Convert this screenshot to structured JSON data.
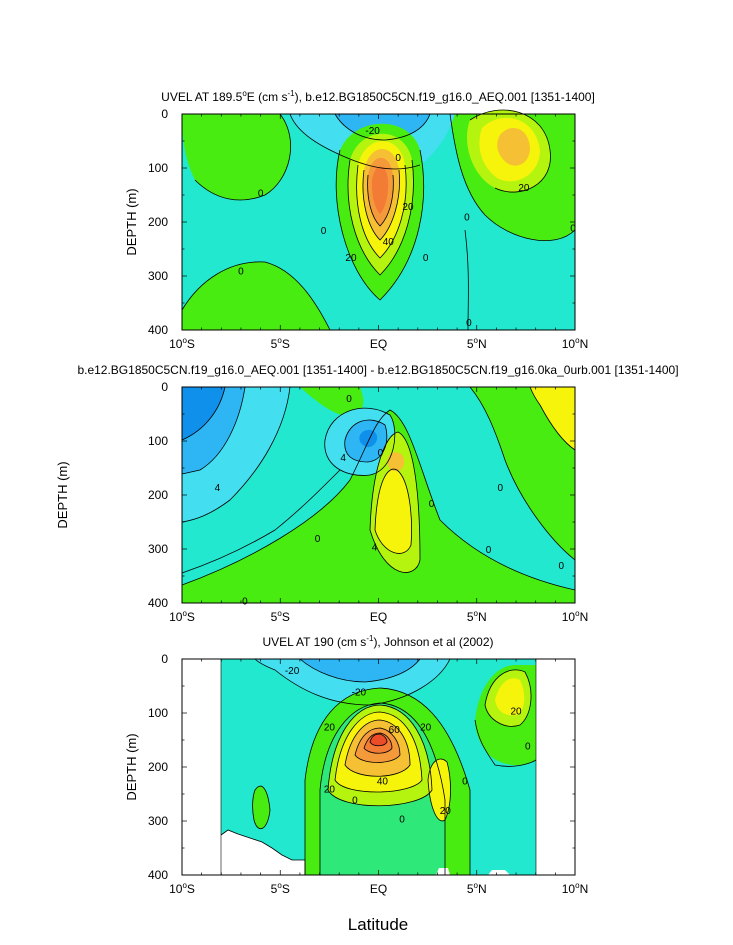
{
  "chart_data": [
    {
      "type": "contour",
      "title_prefix": "UVEL AT 189.5",
      "title_sup": "o",
      "title_mid": "E (cm s",
      "title_sup2": "-1",
      "title_suffix": "), b.e12.BG1850C5CN.f19_g16.0_AEQ.001 [1351-1400]",
      "xlabel": "",
      "ylabel": "DEPTH (m)",
      "xlim": [
        -10,
        10
      ],
      "ylim": [
        400,
        0
      ],
      "x_tick_values": [
        -10,
        -5,
        0,
        5,
        10
      ],
      "y_ticks": [
        "0",
        "100",
        "200",
        "300",
        "400"
      ],
      "contour_interval": 5,
      "contour_labels": [
        {
          "text": "-20",
          "x": -0.3,
          "y": 30
        },
        {
          "text": "0",
          "x": 1.0,
          "y": 80
        },
        {
          "text": "0",
          "x": -6.0,
          "y": 145
        },
        {
          "text": "20",
          "x": 1.5,
          "y": 170
        },
        {
          "text": "40",
          "x": 0.5,
          "y": 235
        },
        {
          "text": "0",
          "x": -2.8,
          "y": 215
        },
        {
          "text": "20",
          "x": -1.4,
          "y": 265
        },
        {
          "text": "0",
          "x": 2.4,
          "y": 265
        },
        {
          "text": "0",
          "x": -7.0,
          "y": 290
        },
        {
          "text": "0",
          "x": 4.5,
          "y": 190
        },
        {
          "text": "20",
          "x": 7.4,
          "y": 135
        },
        {
          "text": "0",
          "x": 9.9,
          "y": 210
        },
        {
          "text": "0",
          "x": 4.6,
          "y": 385
        }
      ]
    },
    {
      "type": "contour",
      "title": "b.e12.BG1850C5CN.f19_g16.0_AEQ.001 [1351-1400] - b.e12.BG1850C5CN.f19_g16.0ka_0urb.001 [1351-1400]",
      "xlabel": "",
      "ylabel": "DEPTH (m)",
      "xlim": [
        -10,
        10
      ],
      "ylim": [
        400,
        0
      ],
      "x_tick_values": [
        -10,
        -5,
        0,
        5,
        10
      ],
      "y_ticks": [
        "0",
        "100",
        "200",
        "300",
        "400"
      ],
      "contour_interval": 2,
      "contour_labels": [
        {
          "text": "0",
          "x": -1.5,
          "y": 20
        },
        {
          "text": "4",
          "x": -1.8,
          "y": 130
        },
        {
          "text": "0",
          "x": 0.1,
          "y": 120
        },
        {
          "text": "4",
          "x": -8.2,
          "y": 185
        },
        {
          "text": "0",
          "x": -3.1,
          "y": 280
        },
        {
          "text": "4",
          "x": -0.2,
          "y": 295
        },
        {
          "text": "0",
          "x": 2.7,
          "y": 215
        },
        {
          "text": "0",
          "x": 6.2,
          "y": 185
        },
        {
          "text": "0",
          "x": 5.6,
          "y": 300
        },
        {
          "text": "0",
          "x": 9.3,
          "y": 330
        },
        {
          "text": "0",
          "x": -6.8,
          "y": 395
        }
      ]
    },
    {
      "type": "contour",
      "title_prefix": "UVEL AT 190 (cm s",
      "title_sup": "-1",
      "title_suffix": "), Johnson et al (2002)",
      "xlabel": "Latitude",
      "ylabel": "DEPTH (m)",
      "xlim": [
        -10,
        10
      ],
      "ylim": [
        400,
        0
      ],
      "data_extent_lat": [
        -8,
        8
      ],
      "x_tick_values": [
        -10,
        -5,
        0,
        5,
        10
      ],
      "y_ticks": [
        "0",
        "100",
        "200",
        "300",
        "400"
      ],
      "contour_interval": 5,
      "contour_labels": [
        {
          "text": "-20",
          "x": -4.4,
          "y": 20
        },
        {
          "text": "-20",
          "x": -1.0,
          "y": 60
        },
        {
          "text": "20",
          "x": -2.5,
          "y": 125
        },
        {
          "text": "60",
          "x": 0.8,
          "y": 130
        },
        {
          "text": "20",
          "x": 2.4,
          "y": 125
        },
        {
          "text": "20",
          "x": 7.0,
          "y": 95
        },
        {
          "text": "40",
          "x": 0.2,
          "y": 225
        },
        {
          "text": "20",
          "x": -2.5,
          "y": 240
        },
        {
          "text": "0",
          "x": 4.4,
          "y": 225
        },
        {
          "text": "0",
          "x": -1.2,
          "y": 260
        },
        {
          "text": "20",
          "x": 3.4,
          "y": 280
        },
        {
          "text": "0",
          "x": 1.2,
          "y": 295
        },
        {
          "text": "0",
          "x": 7.6,
          "y": 160
        }
      ]
    }
  ],
  "x_tick_labels": [
    {
      "num": "10",
      "sup": "o",
      "hem": "S"
    },
    {
      "num": "5",
      "sup": "o",
      "hem": "S"
    },
    {
      "num": "EQ",
      "sup": "",
      "hem": ""
    },
    {
      "num": "5",
      "sup": "o",
      "hem": "N"
    },
    {
      "num": "10",
      "sup": "o",
      "hem": "N"
    }
  ],
  "colors": {
    "neg_deep": "#0f90ea",
    "neg_mid": "#2db6f3",
    "neg_light": "#43deef",
    "near_zero": "#22e8cf",
    "pos_1": "#2fe87a",
    "pos_2": "#48ec11",
    "pos_3": "#b5f40f",
    "pos_4": "#f6f40a",
    "pos_5": "#f5c033",
    "pos_6": "#f59a3a",
    "pos_7": "#f27c36",
    "pos_8": "#ec4c27"
  }
}
